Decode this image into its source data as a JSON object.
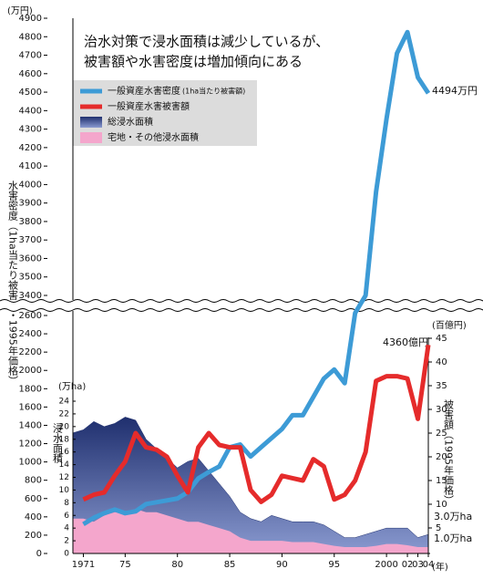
{
  "chart_data": {
    "type": "combo",
    "title": [
      "治水対策で浸水面積は減少しているが、",
      "被害額や水害密度は増加傾向にある"
    ],
    "x": [
      1970,
      1971,
      1972,
      1973,
      1974,
      1975,
      1976,
      1977,
      1978,
      1979,
      1980,
      1981,
      1982,
      1983,
      1984,
      1985,
      1986,
      1987,
      1988,
      1989,
      1990,
      1991,
      1992,
      1993,
      1994,
      1995,
      1996,
      1997,
      1998,
      1999,
      2000,
      2001,
      2002,
      2003,
      2004
    ],
    "xlim": [
      1970,
      2004
    ],
    "xticks": [
      {
        "value": 1971,
        "label": "1971"
      },
      {
        "value": 1975,
        "label": "75"
      },
      {
        "value": 1980,
        "label": "80"
      },
      {
        "value": 1985,
        "label": "85"
      },
      {
        "value": 1990,
        "label": "90"
      },
      {
        "value": 1995,
        "label": "95"
      },
      2000,
      {
        "value": 2002,
        "label": "02"
      },
      {
        "value": 2003,
        "label": "03"
      },
      {
        "value": 2004,
        "label": "04"
      }
    ],
    "x_unit": "(年)",
    "ylim": [
      0,
      4900
    ],
    "axis_break": [
      2600,
      3400
    ],
    "yticks": [
      0,
      200,
      400,
      600,
      800,
      1000,
      1200,
      1400,
      1600,
      1800,
      2000,
      2200,
      2400,
      2600,
      3400,
      3500,
      3600,
      3700,
      3800,
      3900,
      4000,
      4100,
      4200,
      4300,
      4400,
      4500,
      4600,
      4700,
      4800,
      4900
    ],
    "y_unit": "(万円)",
    "y_title": "水害密度（1ha当たり被害額・1995年価格）",
    "y2lim": [
      0,
      45
    ],
    "y2ticks": [
      5,
      10,
      15,
      20,
      25,
      30,
      35,
      40,
      45
    ],
    "y2_unit": "(百億円)",
    "y2_title": "被害額（1995年価格）",
    "y3lim": [
      0,
      24
    ],
    "y3ticks": [
      0,
      2,
      4,
      6,
      8,
      10,
      12,
      14,
      16,
      18,
      20,
      22,
      24
    ],
    "y3_unit": "(万ha)",
    "y3_title": "浸水面積",
    "series": [
      {
        "name": "総浸水面積",
        "type": "area",
        "axis": "y3",
        "color": "#1f2f6e",
        "values": [
          19,
          19.5,
          20.8,
          20,
          20.5,
          21.5,
          21,
          18,
          16.5,
          15,
          13.5,
          14.5,
          15,
          13,
          11,
          9,
          6.5,
          5.5,
          5,
          6,
          5.5,
          5,
          5,
          5,
          4.5,
          3.5,
          2.5,
          2.5,
          3,
          3.5,
          4,
          4,
          4,
          2.5,
          3
        ]
      },
      {
        "name": "宅地・その他浸水面積",
        "type": "area",
        "axis": "y3",
        "color": "#f4a6cc",
        "values": [
          5.5,
          5.5,
          5,
          6,
          6.5,
          6.5,
          7,
          6.5,
          6.5,
          6,
          5.5,
          5,
          5,
          4.5,
          4,
          3.5,
          2.5,
          2,
          2,
          2,
          2,
          1.8,
          1.8,
          1.8,
          1.5,
          1.2,
          1,
          1,
          1,
          1.2,
          1.5,
          1.5,
          1.3,
          1,
          1
        ]
      },
      {
        "name": "一般資産水害密度",
        "name_note": "(1ha当たり被害額)",
        "type": "line",
        "axis": "y",
        "color": "#3d9bd6",
        "values": [
          null,
          320,
          390,
          440,
          480,
          440,
          460,
          540,
          560,
          580,
          600,
          670,
          820,
          890,
          950,
          1160,
          1190,
          1060,
          1160,
          1260,
          1360,
          1510,
          1510,
          1710,
          1910,
          2010,
          1860,
          2700,
          3400,
          3960,
          4355,
          4710,
          4825,
          4580,
          4494
        ]
      },
      {
        "name": "一般資産水害被害額",
        "type": "line",
        "axis": "y2",
        "color": "#e52b2b",
        "values": [
          null,
          11,
          12,
          12.5,
          16,
          19,
          25,
          22,
          21.5,
          20,
          16,
          12.5,
          22,
          25,
          22.5,
          22,
          22,
          13,
          10.5,
          12,
          16,
          15.5,
          15,
          19.5,
          18,
          11,
          12,
          15,
          21,
          36,
          37,
          37,
          36.5,
          28,
          43.6
        ]
      }
    ],
    "annotations": [
      "4494万円",
      "4360億円",
      "3.0万ha",
      "1.0万ha"
    ]
  }
}
